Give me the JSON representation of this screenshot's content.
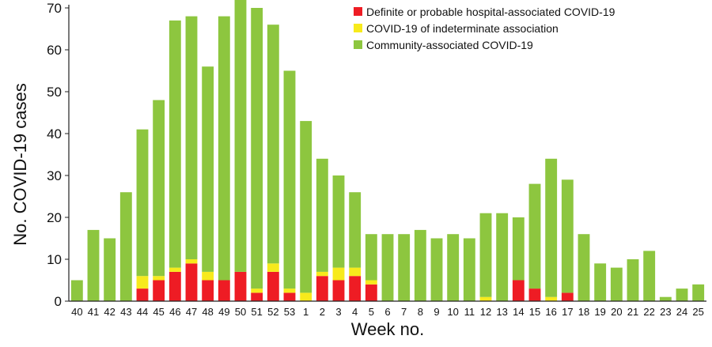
{
  "chart_data": {
    "type": "bar",
    "stacked": true,
    "title": "",
    "xlabel": "Week no.",
    "ylabel": "No. COVID-19 cases",
    "ylim": [
      0,
      70
    ],
    "yticks": [
      0,
      10,
      20,
      30,
      40,
      50,
      60,
      70
    ],
    "grid": false,
    "legend_position": "top-right",
    "categories": [
      "40",
      "41",
      "42",
      "43",
      "44",
      "45",
      "46",
      "47",
      "48",
      "49",
      "50",
      "51",
      "52",
      "53",
      "1",
      "2",
      "3",
      "4",
      "5",
      "6",
      "7",
      "8",
      "9",
      "10",
      "11",
      "12",
      "13",
      "14",
      "15",
      "16",
      "17",
      "18",
      "19",
      "20",
      "21",
      "22",
      "23",
      "24",
      "25"
    ],
    "series": [
      {
        "name": "Definite or probable hospital-associated COVID-19",
        "color": "#ee1c24",
        "values": [
          0,
          0,
          0,
          0,
          3,
          5,
          7,
          9,
          5,
          5,
          7,
          2,
          7,
          2,
          0,
          6,
          5,
          6,
          4,
          0,
          0,
          0,
          0,
          0,
          0,
          0,
          0,
          5,
          3,
          0,
          2,
          0,
          0,
          0,
          0,
          0,
          0,
          0,
          0
        ]
      },
      {
        "name": "COVID-19 of indeterminate association",
        "color": "#f7ea1c",
        "values": [
          0,
          0,
          0,
          0,
          3,
          1,
          1,
          1,
          2,
          0,
          0,
          1,
          2,
          1,
          2,
          1,
          3,
          2,
          1,
          0,
          0,
          0,
          0,
          0,
          0,
          1,
          0,
          0,
          0,
          1,
          0,
          0,
          0,
          0,
          0,
          0,
          0,
          0,
          0
        ]
      },
      {
        "name": "Community-associated COVID-19",
        "color": "#8dc63f",
        "values": [
          5,
          17,
          15,
          26,
          35,
          42,
          59,
          58,
          49,
          63,
          65,
          67,
          57,
          52,
          41,
          27,
          22,
          18,
          11,
          16,
          16,
          17,
          15,
          16,
          15,
          20,
          21,
          15,
          25,
          33,
          27,
          16,
          9,
          8,
          10,
          12,
          1,
          3,
          4
        ]
      }
    ]
  }
}
